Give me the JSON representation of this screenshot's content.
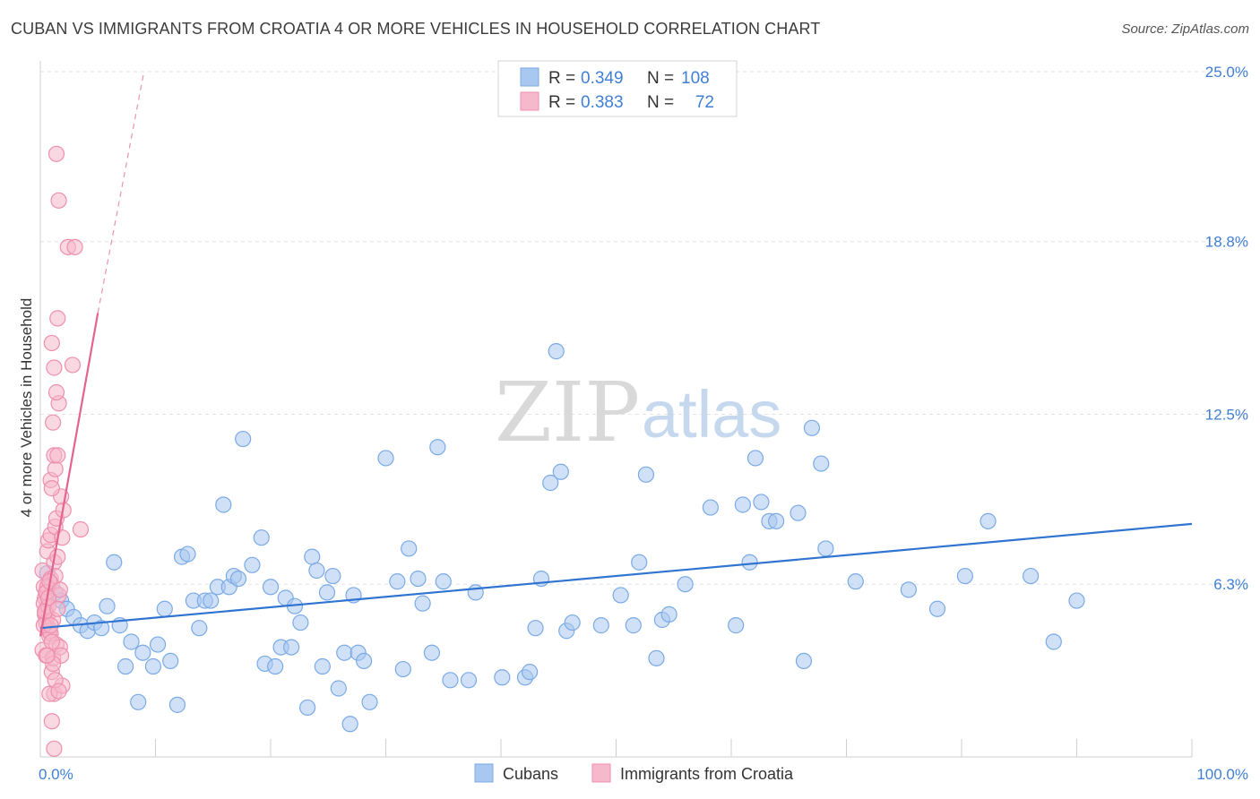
{
  "title": "CUBAN VS IMMIGRANTS FROM CROATIA 4 OR MORE VEHICLES IN HOUSEHOLD CORRELATION CHART",
  "source": "Source: ZipAtlas.com",
  "watermark": {
    "zip": "ZIP",
    "atlas": "atlas"
  },
  "colors": {
    "blue_fill": "#a9c8f0",
    "blue_stroke": "#7aaae6",
    "blue_line": "#2f74d0",
    "pink_fill": "#f6b8cb",
    "pink_stroke": "#ee8fae",
    "pink_line": "#e2648f",
    "grid": "#e3e3e3",
    "axis_label": "#3f7fd6"
  },
  "legend": {
    "rows": [
      {
        "r_label": "R =",
        "r_value": "0.349",
        "n_label": "N =",
        "n_value": "108"
      },
      {
        "r_label": "R =",
        "r_value": "0.383",
        "n_label": "N =",
        "n_value": "72"
      }
    ]
  },
  "chart_data": {
    "type": "scatter",
    "title": "CUBAN VS IMMIGRANTS FROM CROATIA 4 OR MORE VEHICLES IN HOUSEHOLD CORRELATION CHART",
    "xlabel": "",
    "ylabel": "4 or more Vehicles in Household",
    "x_tick_labels": [
      "0.0%",
      "100.0%"
    ],
    "y_tick_labels": [
      "6.3%",
      "12.5%",
      "18.8%",
      "25.0%"
    ],
    "y_ticks": [
      6.3,
      12.5,
      18.8,
      25.0
    ],
    "xlim": [
      0,
      100
    ],
    "ylim": [
      0,
      25
    ],
    "x_minor_ticks": [
      0,
      10,
      20,
      30,
      40,
      50,
      60,
      70,
      80,
      90,
      100
    ],
    "grid": true,
    "legend_position": "top-center",
    "series": [
      {
        "name": "Cubans",
        "r": 0.349,
        "n": 108,
        "trend": {
          "x0": 0,
          "y0": 4.7,
          "x1": 100,
          "y1": 8.5
        },
        "points": [
          [
            0.6,
            6.7
          ],
          [
            1.3,
            6.0
          ],
          [
            1.8,
            5.7
          ],
          [
            2.3,
            5.4
          ],
          [
            2.9,
            5.1
          ],
          [
            3.5,
            4.8
          ],
          [
            4.1,
            4.6
          ],
          [
            4.7,
            4.9
          ],
          [
            5.3,
            4.7
          ],
          [
            5.8,
            5.5
          ],
          [
            6.4,
            7.1
          ],
          [
            6.9,
            4.8
          ],
          [
            7.4,
            3.3
          ],
          [
            7.9,
            4.2
          ],
          [
            8.5,
            2.0
          ],
          [
            8.9,
            3.8
          ],
          [
            9.8,
            3.3
          ],
          [
            10.2,
            4.1
          ],
          [
            10.8,
            5.4
          ],
          [
            11.3,
            3.5
          ],
          [
            11.9,
            1.9
          ],
          [
            12.3,
            7.3
          ],
          [
            12.8,
            7.4
          ],
          [
            13.3,
            5.7
          ],
          [
            13.8,
            4.7
          ],
          [
            14.3,
            5.7
          ],
          [
            14.8,
            5.7
          ],
          [
            15.4,
            6.2
          ],
          [
            15.9,
            9.2
          ],
          [
            16.4,
            6.2
          ],
          [
            16.8,
            6.6
          ],
          [
            17.2,
            6.5
          ],
          [
            17.6,
            11.6
          ],
          [
            18.4,
            7.0
          ],
          [
            19.2,
            8.0
          ],
          [
            19.5,
            3.4
          ],
          [
            20.0,
            6.2
          ],
          [
            20.4,
            3.3
          ],
          [
            20.9,
            4.0
          ],
          [
            21.3,
            5.8
          ],
          [
            21.8,
            4.0
          ],
          [
            22.1,
            5.5
          ],
          [
            22.6,
            4.9
          ],
          [
            23.2,
            1.8
          ],
          [
            23.6,
            7.3
          ],
          [
            24.0,
            6.8
          ],
          [
            24.5,
            3.3
          ],
          [
            24.9,
            6.0
          ],
          [
            25.4,
            6.6
          ],
          [
            25.9,
            2.5
          ],
          [
            26.4,
            3.8
          ],
          [
            26.9,
            1.2
          ],
          [
            27.2,
            5.9
          ],
          [
            27.6,
            3.8
          ],
          [
            28.1,
            3.5
          ],
          [
            28.6,
            2.0
          ],
          [
            30.0,
            10.9
          ],
          [
            31.0,
            6.4
          ],
          [
            31.5,
            3.2
          ],
          [
            32.0,
            7.6
          ],
          [
            32.8,
            6.5
          ],
          [
            33.2,
            5.6
          ],
          [
            34.0,
            3.8
          ],
          [
            34.5,
            11.3
          ],
          [
            35.0,
            6.4
          ],
          [
            35.6,
            2.8
          ],
          [
            37.2,
            2.8
          ],
          [
            37.8,
            6.0
          ],
          [
            40.1,
            2.9
          ],
          [
            42.1,
            2.9
          ],
          [
            42.5,
            3.1
          ],
          [
            43.0,
            4.7
          ],
          [
            43.5,
            6.5
          ],
          [
            44.3,
            10.0
          ],
          [
            44.8,
            14.8
          ],
          [
            45.2,
            10.4
          ],
          [
            45.7,
            4.6
          ],
          [
            46.2,
            4.9
          ],
          [
            48.7,
            4.8
          ],
          [
            50.4,
            5.9
          ],
          [
            51.5,
            4.8
          ],
          [
            52.0,
            7.1
          ],
          [
            52.6,
            10.3
          ],
          [
            53.5,
            3.6
          ],
          [
            54.0,
            5.0
          ],
          [
            54.6,
            5.2
          ],
          [
            56.0,
            6.3
          ],
          [
            58.2,
            9.1
          ],
          [
            60.4,
            4.8
          ],
          [
            61.0,
            9.2
          ],
          [
            61.6,
            7.1
          ],
          [
            62.1,
            10.9
          ],
          [
            62.6,
            9.3
          ],
          [
            63.3,
            8.6
          ],
          [
            63.9,
            8.6
          ],
          [
            65.8,
            8.9
          ],
          [
            66.3,
            3.5
          ],
          [
            67.0,
            12.0
          ],
          [
            67.8,
            10.7
          ],
          [
            68.2,
            7.6
          ],
          [
            70.8,
            6.4
          ],
          [
            75.4,
            6.1
          ],
          [
            77.9,
            5.4
          ],
          [
            80.3,
            6.6
          ],
          [
            82.3,
            8.6
          ],
          [
            86.0,
            6.6
          ],
          [
            88.0,
            4.2
          ],
          [
            90.0,
            5.7
          ]
        ]
      },
      {
        "name": "Immigrants from Croatia",
        "r": 0.383,
        "n": 72,
        "trend": {
          "x0": 0,
          "y0": 4.4,
          "x1": 5.0,
          "y1": 16.2
        },
        "trend_extended": {
          "x0": 5.0,
          "y0": 16.2,
          "x1": 9.0,
          "y1": 25.0
        },
        "points": [
          [
            0.2,
            6.8
          ],
          [
            0.3,
            6.2
          ],
          [
            0.4,
            5.8
          ],
          [
            0.5,
            5.4
          ],
          [
            0.6,
            5.1
          ],
          [
            0.7,
            4.7
          ],
          [
            0.8,
            4.4
          ],
          [
            0.9,
            6.5
          ],
          [
            0.3,
            5.6
          ],
          [
            0.4,
            5.2
          ],
          [
            0.5,
            4.9
          ],
          [
            0.6,
            6.0
          ],
          [
            0.7,
            5.5
          ],
          [
            0.8,
            4.6
          ],
          [
            0.2,
            3.9
          ],
          [
            0.5,
            3.7
          ],
          [
            0.9,
            4.5
          ],
          [
            1.0,
            6.3
          ],
          [
            1.1,
            5.0
          ],
          [
            1.2,
            7.1
          ],
          [
            1.3,
            6.6
          ],
          [
            1.4,
            4.1
          ],
          [
            0.6,
            7.5
          ],
          [
            0.7,
            7.9
          ],
          [
            0.9,
            8.1
          ],
          [
            1.0,
            3.1
          ],
          [
            1.1,
            3.6
          ],
          [
            1.2,
            2.3
          ],
          [
            1.3,
            8.4
          ],
          [
            1.4,
            8.7
          ],
          [
            1.5,
            7.3
          ],
          [
            1.6,
            5.9
          ],
          [
            1.7,
            4.0
          ],
          [
            1.8,
            3.7
          ],
          [
            1.9,
            2.6
          ],
          [
            0.8,
            2.3
          ],
          [
            1.0,
            1.3
          ],
          [
            1.2,
            0.3
          ],
          [
            0.9,
            10.1
          ],
          [
            1.3,
            10.5
          ],
          [
            1.1,
            12.2
          ],
          [
            1.6,
            12.9
          ],
          [
            1.4,
            13.3
          ],
          [
            1.2,
            14.2
          ],
          [
            1.0,
            15.1
          ],
          [
            1.5,
            16.0
          ],
          [
            2.8,
            14.3
          ],
          [
            2.4,
            18.6
          ],
          [
            3.0,
            18.6
          ],
          [
            1.6,
            20.3
          ],
          [
            1.4,
            22.0
          ],
          [
            0.6,
            6.2
          ],
          [
            0.5,
            6.0
          ],
          [
            0.4,
            5.3
          ],
          [
            0.3,
            4.8
          ],
          [
            0.7,
            5.8
          ],
          [
            0.9,
            4.8
          ],
          [
            1.1,
            3.4
          ],
          [
            1.0,
            4.2
          ],
          [
            0.8,
            6.4
          ],
          [
            1.5,
            5.4
          ],
          [
            1.7,
            6.1
          ],
          [
            2.0,
            9.0
          ],
          [
            1.8,
            9.5
          ],
          [
            3.5,
            8.3
          ],
          [
            1.2,
            11.0
          ],
          [
            1.5,
            11.0
          ],
          [
            1.9,
            8.0
          ],
          [
            1.3,
            2.8
          ],
          [
            1.6,
            2.4
          ],
          [
            0.6,
            3.7
          ],
          [
            1.0,
            9.8
          ]
        ]
      }
    ]
  }
}
